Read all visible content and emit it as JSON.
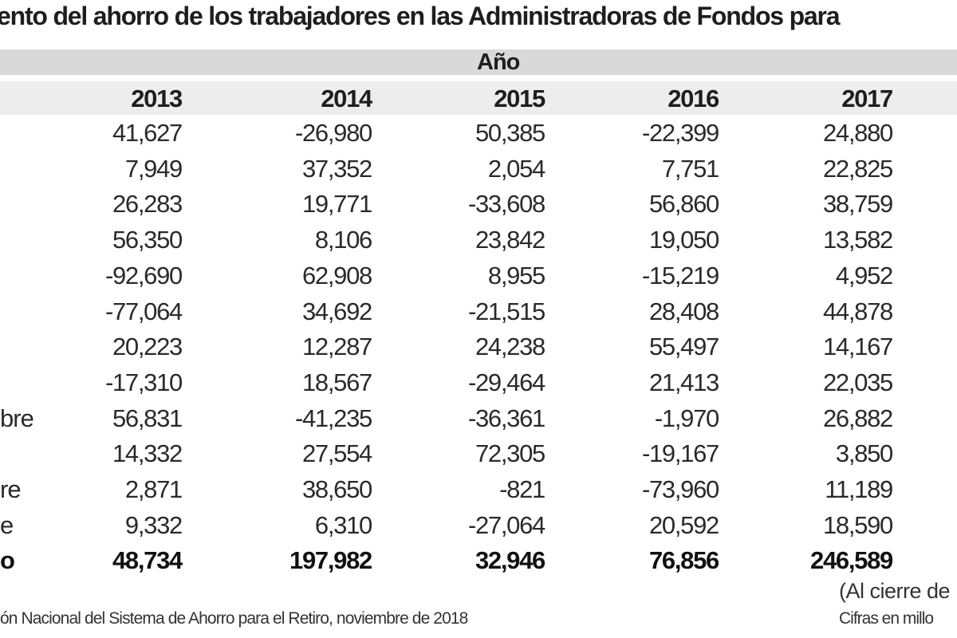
{
  "title": "ento del ahorro de los trabajadores en las Administradoras de Fondos para",
  "group_header": "Año",
  "years": [
    "2013",
    "2014",
    "2015",
    "2016",
    "2017"
  ],
  "rows": [
    {
      "label": "",
      "values": [
        "41,627",
        "-26,980",
        "50,385",
        "-22,399",
        "24,880"
      ]
    },
    {
      "label": "",
      "values": [
        "7,949",
        "37,352",
        "2,054",
        "7,751",
        "22,825"
      ]
    },
    {
      "label": "",
      "values": [
        "26,283",
        "19,771",
        "-33,608",
        "56,860",
        "38,759"
      ]
    },
    {
      "label": "",
      "values": [
        "56,350",
        "8,106",
        "23,842",
        "19,050",
        "13,582"
      ]
    },
    {
      "label": "",
      "values": [
        "-92,690",
        "62,908",
        "8,955",
        "-15,219",
        "4,952"
      ]
    },
    {
      "label": "",
      "values": [
        "-77,064",
        "34,692",
        "-21,515",
        "28,408",
        "44,878"
      ]
    },
    {
      "label": "",
      "values": [
        "20,223",
        "12,287",
        "24,238",
        "55,497",
        "14,167"
      ]
    },
    {
      "label": "",
      "values": [
        "-17,310",
        "18,567",
        "-29,464",
        "21,413",
        "22,035"
      ]
    },
    {
      "label": "bre",
      "values": [
        "56,831",
        "-41,235",
        "-36,361",
        "-1,970",
        "26,882"
      ]
    },
    {
      "label": "",
      "values": [
        "14,332",
        "27,554",
        "72,305",
        "-19,167",
        "3,850"
      ]
    },
    {
      "label": "re",
      "values": [
        "2,871",
        "38,650",
        "-821",
        "-73,960",
        "11,189"
      ]
    },
    {
      "label": "e",
      "values": [
        "9,332",
        "6,310",
        "-27,064",
        "20,592",
        "18,590"
      ]
    }
  ],
  "total": {
    "label": "o",
    "values": [
      "48,734",
      "197,982",
      "32,946",
      "76,856",
      "246,589"
    ]
  },
  "notes": {
    "closing": "(Al cierre de",
    "units": "Cifras en millo",
    "source": "ón Nacional del Sistema de Ahorro para el Retiro, noviembre de 2018"
  }
}
